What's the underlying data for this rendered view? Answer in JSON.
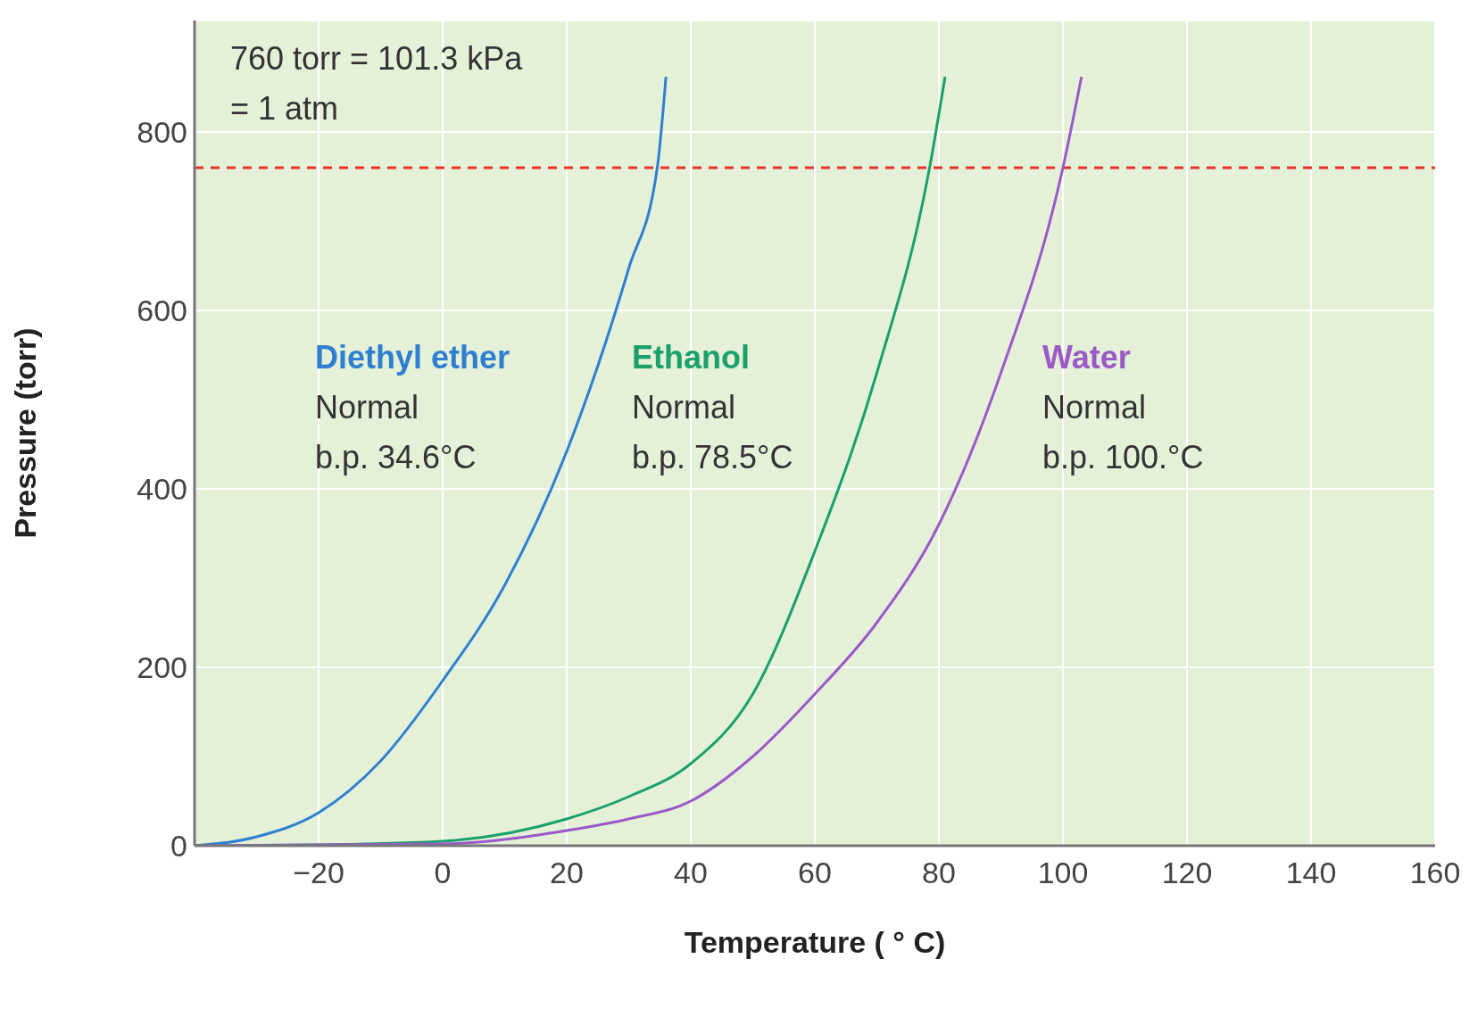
{
  "chart_data": {
    "type": "line",
    "xlabel": "Temperature ( ° C)",
    "ylabel": "Pressure (torr)",
    "xlim": [
      -40,
      160
    ],
    "xticks": [
      {
        "value": -20,
        "label": "−20"
      },
      0,
      20,
      40,
      60,
      80,
      100,
      120,
      140,
      160
    ],
    "ylim": [
      0,
      925
    ],
    "yticks": [
      0,
      200,
      400,
      600,
      800
    ],
    "grid": true,
    "marker": "none",
    "line_style": "solid",
    "ref_lines": [
      {
        "axis": "y",
        "value": 760,
        "color": "#e8302a",
        "line_style": "dashed"
      }
    ],
    "annotations": [
      "760 torr = 101.3 kPa\n= 1 atm",
      "Normal\nb.p. 34.6°C",
      "Normal\nb.p. 78.5°C",
      "Normal\nb.p. 100.°C"
    ],
    "series": [
      {
        "name": "Diethyl ether",
        "color": "#2f7fd0",
        "x": [
          -40,
          -30,
          -20,
          -10,
          0,
          10,
          20,
          30,
          34.6,
          36
        ],
        "values": [
          0,
          10,
          37,
          95,
          185,
          292,
          442,
          647,
          760,
          862
        ]
      },
      {
        "name": "Ethanol",
        "color": "#1aa06a",
        "x": [
          -40,
          -20,
          0,
          20,
          30,
          40,
          50,
          60,
          70,
          78.5,
          81
        ],
        "values": [
          0,
          1,
          5,
          30,
          55,
          92,
          170,
          330,
          530,
          760,
          862
        ]
      },
      {
        "name": "Water",
        "color": "#9b59c8",
        "x": [
          -40,
          0,
          20,
          30,
          40,
          50,
          60,
          70,
          80,
          90,
          100,
          103
        ],
        "values": [
          0,
          2,
          17,
          30,
          50,
          100,
          170,
          250,
          360,
          530,
          760,
          862
        ]
      }
    ]
  }
}
